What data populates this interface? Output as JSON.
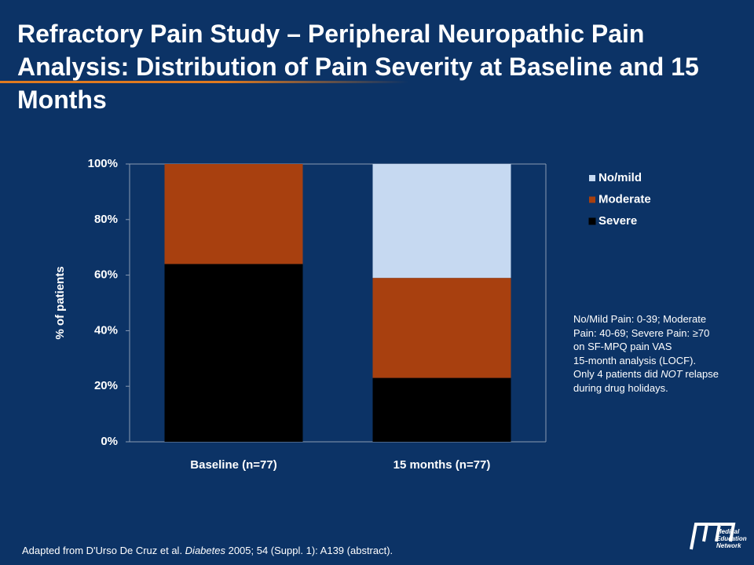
{
  "chart_data": {
    "type": "stacked_bar",
    "title": "Refractory Pain Study – Peripheral Neuropathic Pain Analysis: Distribution of Pain Severity at Baseline and 15 Months",
    "ylabel": "% of patients",
    "categories": [
      "Baseline (n=77)",
      "15 months (n=77)"
    ],
    "series": [
      {
        "name": "Severe",
        "color": "#000000",
        "values": [
          64,
          23
        ]
      },
      {
        "name": "Moderate",
        "color": "#a8400f",
        "values": [
          36,
          36
        ]
      },
      {
        "name": "No/mild",
        "color": "#c6d9f1",
        "values": [
          0,
          41
        ]
      }
    ],
    "ylim": [
      0,
      100
    ],
    "yticks": [
      {
        "value": 0,
        "label": "0%"
      },
      {
        "value": 20,
        "label": "20%"
      },
      {
        "value": 40,
        "label": "40%"
      },
      {
        "value": 60,
        "label": "60%"
      },
      {
        "value": 80,
        "label": "80%"
      },
      {
        "value": 100,
        "label": "100%"
      }
    ],
    "grid": false,
    "legend": "right",
    "note": [
      "No/Mild Pain: 0-39; Moderate Pain: 40-69; Severe Pain: ≥70 on SF-MPQ pain VAS",
      "15-month analysis (LOCF). Only 4 patients did ",
      "NOT",
      " relapse during drug holidays."
    ]
  },
  "footnote": [
    "Adapted from D'Urso De Cruz et al. ",
    "Diabetes",
    " 2005; 54 (Suppl. 1): A139 (abstract)."
  ],
  "logo": [
    "Medical",
    "Education",
    "Network"
  ]
}
